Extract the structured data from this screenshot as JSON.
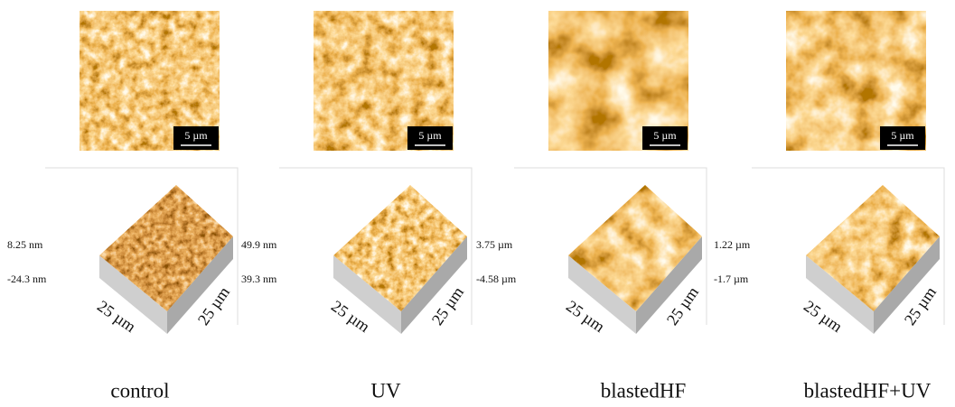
{
  "panels": [
    {
      "label": "control",
      "scale_bar": "5 µm",
      "z_max": "8.25 nm",
      "z_min": "-24.3 nm",
      "x_axis": "25 µm",
      "y_axis": "25 µm"
    },
    {
      "label": "UV",
      "scale_bar": "5 µm",
      "z_max": "49.9 nm",
      "z_min": "39.3 nm",
      "x_axis": "25 µm",
      "y_axis": "25 µm"
    },
    {
      "label": "blastedHF",
      "scale_bar": "5 µm",
      "z_max": "3.75 µm",
      "z_min": "-4.58 µm",
      "x_axis": "25 µm",
      "y_axis": "25 µm"
    },
    {
      "label": "blastedHF+UV",
      "scale_bar": "5 µm",
      "z_max": "1.22 µm",
      "z_min": "-1.7 µm",
      "x_axis": "25 µm",
      "y_axis": "25 µm"
    }
  ]
}
